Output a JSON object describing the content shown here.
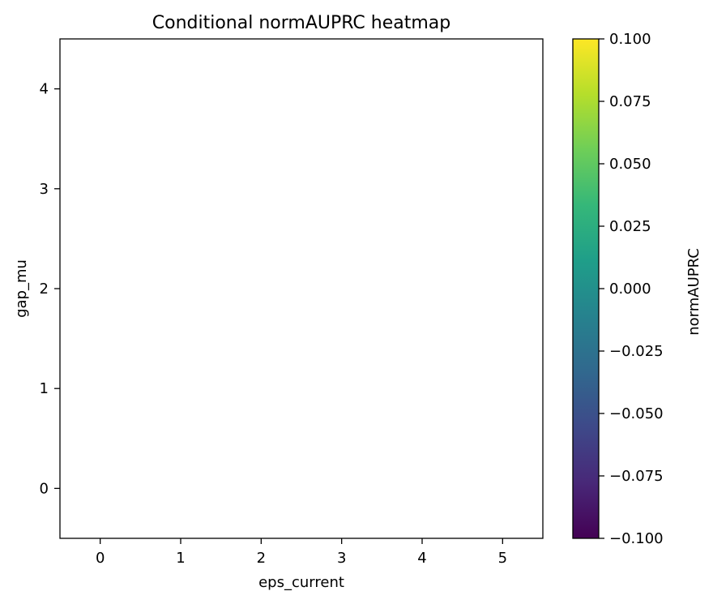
{
  "chart_data": {
    "type": "heatmap",
    "title": "Conditional normAUPRC heatmap",
    "xlabel": "eps_current",
    "ylabel": "gap_mu",
    "x_ticks": [
      0,
      1,
      2,
      3,
      4,
      5
    ],
    "y_ticks": [
      0,
      1,
      2,
      3,
      4
    ],
    "xlim": [
      -0.5,
      5.5
    ],
    "ylim": [
      -0.5,
      4.5
    ],
    "values": [],
    "grid": false,
    "colorbar": {
      "label": "normAUPRC",
      "colormap": "viridis",
      "range": [
        -0.1,
        0.1
      ],
      "ticks": [
        0.1,
        0.075,
        0.05,
        0.025,
        0.0,
        -0.025,
        -0.05,
        -0.075,
        -0.1
      ],
      "tick_labels": [
        "0.100",
        "0.075",
        "0.050",
        "0.025",
        "0.000",
        "−0.025",
        "−0.050",
        "−0.075",
        "−0.100"
      ],
      "colors": [
        "#fde725",
        "#b5de2b",
        "#6ece58",
        "#35b779",
        "#1f9e89",
        "#26828e",
        "#31688e",
        "#3e4989",
        "#482878",
        "#440154"
      ]
    }
  }
}
